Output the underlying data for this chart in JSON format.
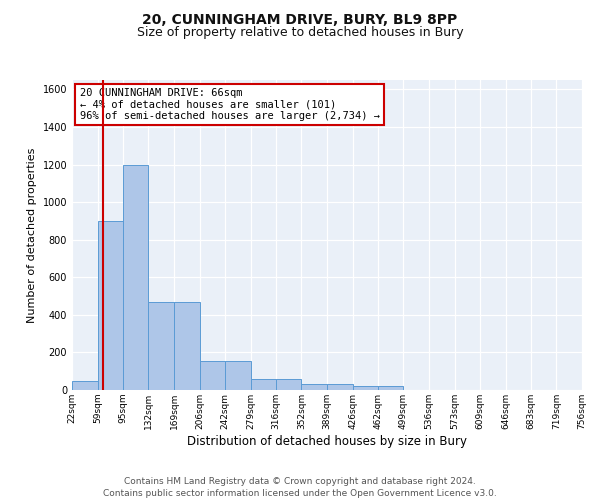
{
  "title1": "20, CUNNINGHAM DRIVE, BURY, BL9 8PP",
  "title2": "Size of property relative to detached houses in Bury",
  "xlabel": "Distribution of detached houses by size in Bury",
  "ylabel": "Number of detached properties",
  "bar_values": [
    50,
    900,
    1200,
    470,
    470,
    155,
    155,
    60,
    60,
    30,
    30,
    20,
    20,
    0,
    0,
    0,
    0,
    0,
    0,
    0
  ],
  "bin_edges": [
    22,
    59,
    95,
    132,
    169,
    206,
    242,
    279,
    316,
    352,
    389,
    426,
    462,
    499,
    536,
    573,
    609,
    646,
    683,
    719,
    756
  ],
  "tick_labels": [
    "22sqm",
    "59sqm",
    "95sqm",
    "132sqm",
    "169sqm",
    "206sqm",
    "242sqm",
    "279sqm",
    "316sqm",
    "352sqm",
    "389sqm",
    "426sqm",
    "462sqm",
    "499sqm",
    "536sqm",
    "573sqm",
    "609sqm",
    "646sqm",
    "683sqm",
    "719sqm",
    "756sqm"
  ],
  "bar_color": "#aec6e8",
  "bar_edge_color": "#5b9bd5",
  "red_line_x": 66,
  "annotation_text": "20 CUNNINGHAM DRIVE: 66sqm\n← 4% of detached houses are smaller (101)\n96% of semi-detached houses are larger (2,734) →",
  "annotation_box_color": "#ffffff",
  "annotation_edge_color": "#cc0000",
  "ylim": [
    0,
    1650
  ],
  "yticks": [
    0,
    200,
    400,
    600,
    800,
    1000,
    1200,
    1400,
    1600
  ],
  "bg_color": "#eaf0f8",
  "footer": "Contains HM Land Registry data © Crown copyright and database right 2024.\nContains public sector information licensed under the Open Government Licence v3.0.",
  "title1_fontsize": 10,
  "title2_fontsize": 9,
  "xlabel_fontsize": 8.5,
  "ylabel_fontsize": 8,
  "tick_fontsize": 6.5,
  "annotation_fontsize": 7.5,
  "footer_fontsize": 6.5
}
